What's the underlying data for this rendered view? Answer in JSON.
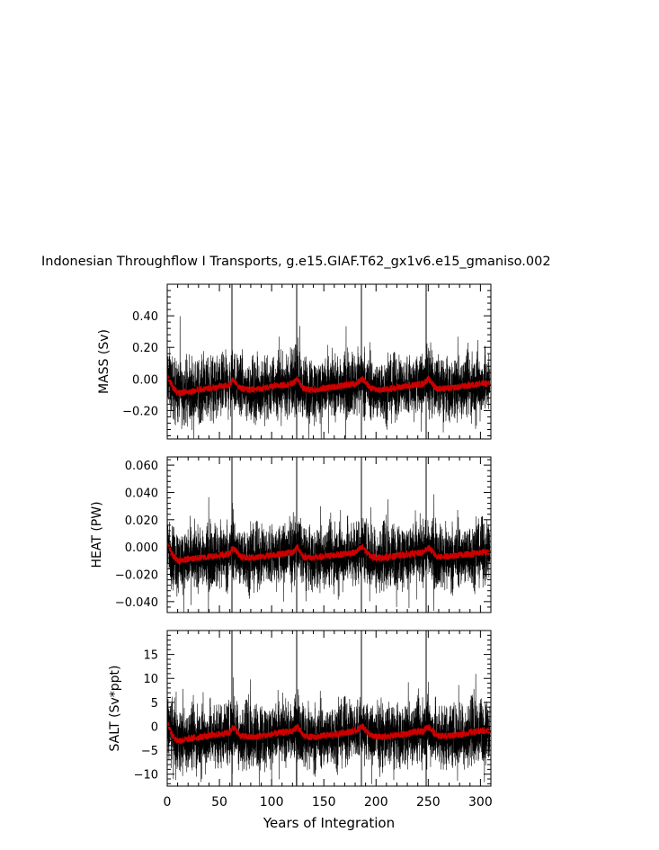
{
  "title": "Indonesian Throughflow I Transports, g.e15.GIAF.T62_gx1v6.e15_gmaniso.002",
  "xlabel": "Years of Integration",
  "colors": {
    "raw": "#000000",
    "smooth": "#cc0000",
    "cycle_lines": "#000000"
  },
  "chart_data": [
    {
      "type": "line",
      "panel": "MASS",
      "ylabel": "MASS (Sv)",
      "xlim": [
        0,
        310
      ],
      "ylim": [
        -0.38,
        0.6
      ],
      "yticks": [
        -0.2,
        0.0,
        0.2,
        0.4
      ],
      "ytick_labels": [
        "−0.20",
        "0.00",
        "0.20",
        "0.40"
      ],
      "xticks": [
        0,
        50,
        100,
        150,
        200,
        250,
        300
      ],
      "cycle_boundaries": [
        62,
        124,
        186,
        248
      ],
      "smooth": {
        "x": [
          0,
          5,
          10,
          20,
          30,
          40,
          50,
          60,
          63,
          70,
          80,
          90,
          100,
          110,
          120,
          125,
          130,
          140,
          150,
          160,
          170,
          180,
          187,
          195,
          205,
          215,
          225,
          235,
          245,
          250,
          258,
          270,
          280,
          290,
          300,
          308
        ],
        "y": [
          0.02,
          -0.05,
          -0.09,
          -0.08,
          -0.07,
          -0.06,
          -0.05,
          -0.04,
          0.0,
          -0.06,
          -0.07,
          -0.06,
          -0.05,
          -0.04,
          -0.03,
          0.0,
          -0.06,
          -0.07,
          -0.06,
          -0.05,
          -0.04,
          -0.03,
          0.0,
          -0.06,
          -0.07,
          -0.06,
          -0.05,
          -0.04,
          -0.03,
          0.0,
          -0.06,
          -0.06,
          -0.05,
          -0.04,
          -0.03,
          -0.03
        ]
      },
      "spread": 0.12
    },
    {
      "type": "line",
      "panel": "HEAT",
      "ylabel": "HEAT (PW)",
      "xlim": [
        0,
        310
      ],
      "ylim": [
        -0.048,
        0.066
      ],
      "yticks": [
        -0.04,
        -0.02,
        0.0,
        0.02,
        0.04,
        0.06
      ],
      "ytick_labels": [
        "−0.040",
        "−0.020",
        "0.000",
        "0.020",
        "0.040",
        "0.060"
      ],
      "xticks": [
        0,
        50,
        100,
        150,
        200,
        250,
        300
      ],
      "cycle_boundaries": [
        62,
        124,
        186,
        248
      ],
      "smooth": {
        "x": [
          0,
          5,
          10,
          20,
          30,
          40,
          50,
          60,
          63,
          70,
          80,
          90,
          100,
          110,
          120,
          125,
          130,
          140,
          150,
          160,
          170,
          180,
          187,
          195,
          205,
          215,
          225,
          235,
          245,
          250,
          258,
          270,
          280,
          290,
          300,
          308
        ],
        "y": [
          0.003,
          -0.006,
          -0.01,
          -0.009,
          -0.008,
          -0.007,
          -0.006,
          -0.005,
          0.0,
          -0.007,
          -0.008,
          -0.007,
          -0.006,
          -0.005,
          -0.004,
          0.0,
          -0.007,
          -0.008,
          -0.007,
          -0.006,
          -0.005,
          -0.004,
          0.0,
          -0.007,
          -0.008,
          -0.007,
          -0.006,
          -0.005,
          -0.004,
          0.0,
          -0.007,
          -0.007,
          -0.006,
          -0.005,
          -0.004,
          -0.004
        ]
      },
      "spread": 0.014
    },
    {
      "type": "line",
      "panel": "SALT",
      "ylabel": "SALT (Sv*ppt)",
      "xlim": [
        0,
        310
      ],
      "ylim": [
        -12.5,
        20
      ],
      "yticks": [
        -10,
        -5,
        0,
        5,
        10,
        15
      ],
      "ytick_labels": [
        "−10",
        "−5",
        "0",
        "5",
        "10",
        "15"
      ],
      "xticks": [
        0,
        50,
        100,
        150,
        200,
        250,
        300
      ],
      "xtick_labels": [
        "0",
        "50",
        "100",
        "150",
        "200",
        "250",
        "300"
      ],
      "cycle_boundaries": [
        62,
        124,
        186,
        248
      ],
      "smooth": {
        "x": [
          0,
          5,
          10,
          20,
          30,
          40,
          50,
          60,
          63,
          70,
          80,
          90,
          100,
          110,
          120,
          125,
          130,
          140,
          150,
          160,
          170,
          180,
          187,
          195,
          205,
          215,
          225,
          235,
          245,
          250,
          258,
          270,
          280,
          290,
          300,
          308
        ],
        "y": [
          1.0,
          -2.0,
          -3.0,
          -2.7,
          -2.3,
          -2.0,
          -1.7,
          -1.3,
          0.0,
          -2.0,
          -2.3,
          -2.0,
          -1.7,
          -1.3,
          -1.0,
          0.0,
          -2.0,
          -2.3,
          -2.0,
          -1.7,
          -1.3,
          -1.0,
          0.0,
          -2.0,
          -2.3,
          -2.0,
          -1.7,
          -1.3,
          -1.0,
          0.0,
          -2.0,
          -2.0,
          -1.7,
          -1.3,
          -1.0,
          -1.0
        ]
      },
      "spread": 4.0
    }
  ]
}
